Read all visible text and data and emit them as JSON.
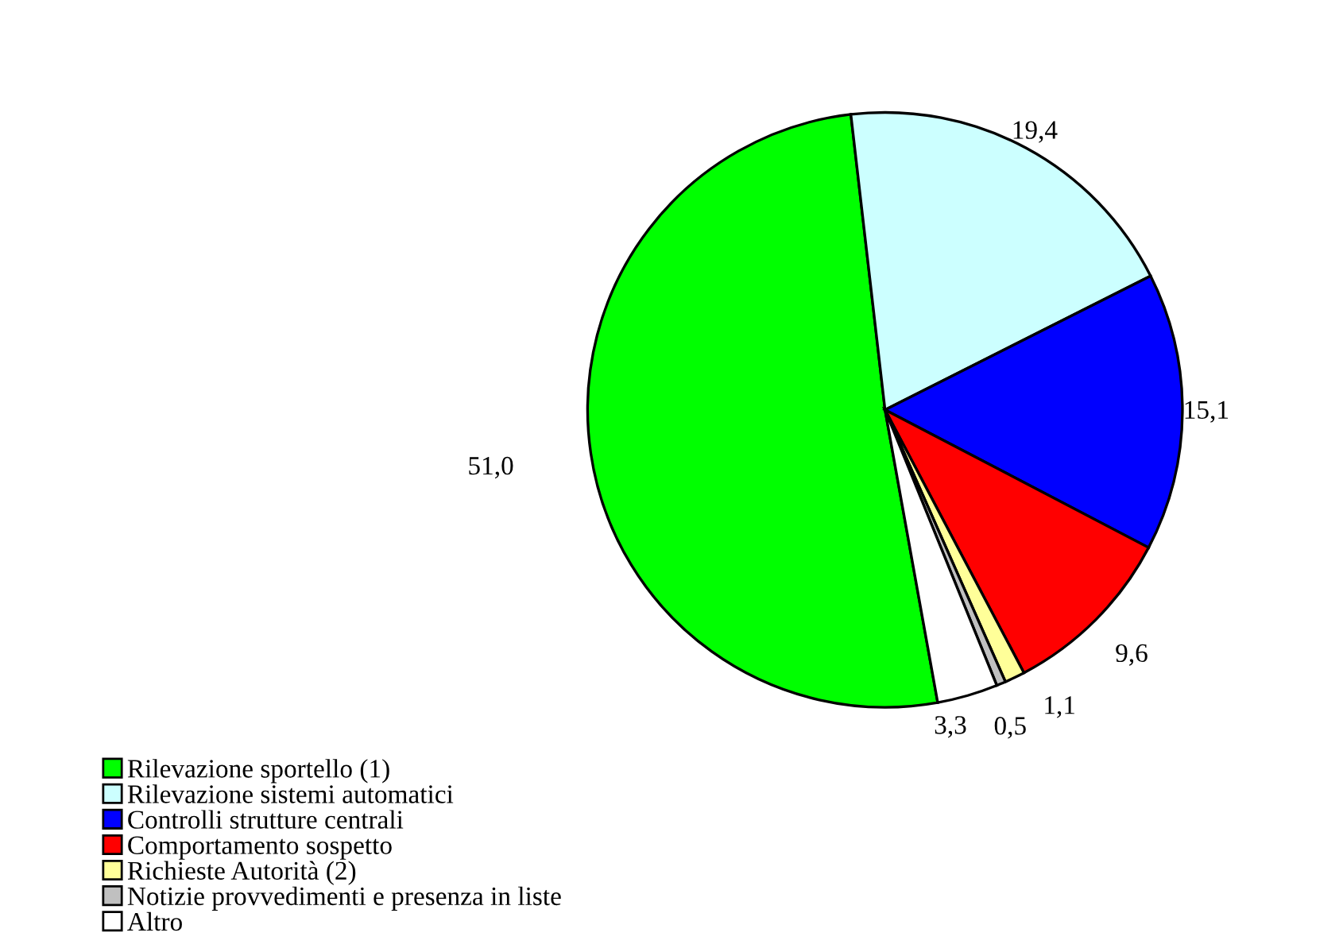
{
  "chart_data": {
    "type": "pie",
    "categories": [
      "Rilevazione sportello (1)",
      "Rilevazione sistemi automatici",
      "Controlli strutture centrali",
      "Comportamento sospetto",
      "Richieste Autorità (2)",
      "Notizie provvedimenti e presenza in liste",
      "Altro"
    ],
    "values": [
      51.0,
      19.4,
      15.1,
      9.6,
      1.1,
      0.5,
      3.3
    ],
    "value_labels": [
      "51,0",
      "19,4",
      "15,1",
      "9,6",
      "1,1",
      "0,5",
      "3,3"
    ],
    "colors": [
      "#00ff00",
      "#ccffff",
      "#0000ff",
      "#ff0000",
      "#ffff99",
      "#c0c0c0",
      "#ffffff"
    ],
    "legend": "bottom left"
  }
}
